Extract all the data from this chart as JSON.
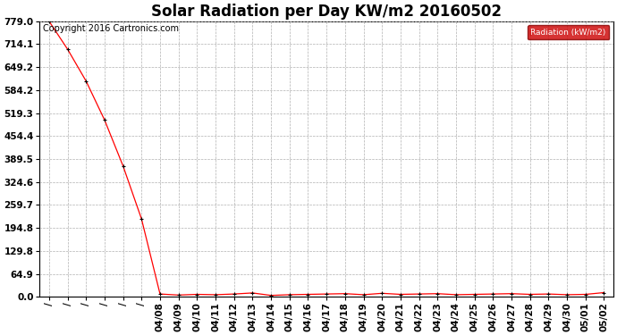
{
  "title": "Solar Radiation per Day KW/m2 20160502",
  "copyright_text": "Copyright 2016 Cartronics.com",
  "legend_label": "Radiation (kW/m2)",
  "background_color": "#ffffff",
  "plot_bg_color": "#ffffff",
  "line_color": "#ff0000",
  "marker_color": "#000000",
  "grid_color": "#b0b0b0",
  "ytick_labels": [
    "779.0",
    "714.1",
    "649.2",
    "584.2",
    "519.3",
    "454.4",
    "389.5",
    "324.6",
    "259.7",
    "194.8",
    "129.8",
    "64.9",
    "0.0"
  ],
  "ytick_values": [
    779.0,
    714.1,
    649.2,
    584.2,
    519.3,
    454.4,
    389.5,
    324.6,
    259.7,
    194.8,
    129.8,
    64.9,
    0.0
  ],
  "ymax": 779.0,
  "ymin": 0.0,
  "x_labels": [
    "/",
    "/",
    "/",
    "/",
    "/",
    "/",
    "04/08",
    "04/09",
    "04/10",
    "04/11",
    "04/12",
    "04/13",
    "04/14",
    "04/15",
    "04/16",
    "04/17",
    "04/18",
    "04/19",
    "04/20",
    "04/21",
    "04/22",
    "04/23",
    "04/24",
    "04/25",
    "04/26",
    "04/27",
    "04/28",
    "04/29",
    "04/30",
    "05/01",
    "05/02"
  ],
  "data_values": [
    779.0,
    700.0,
    610.0,
    500.0,
    370.0,
    220.0,
    8.0,
    5.0,
    7.0,
    6.0,
    8.0,
    11.0,
    4.0,
    6.0,
    7.0,
    8.0,
    9.0,
    6.0,
    10.0,
    7.0,
    8.0,
    9.0,
    6.0,
    7.0,
    8.0,
    9.0,
    7.0,
    8.0,
    6.0,
    7.0,
    12.0
  ],
  "legend_bg_color": "#cc0000",
  "legend_text_color": "#ffffff",
  "title_fontsize": 12,
  "tick_fontsize": 7.5,
  "copyright_fontsize": 7
}
